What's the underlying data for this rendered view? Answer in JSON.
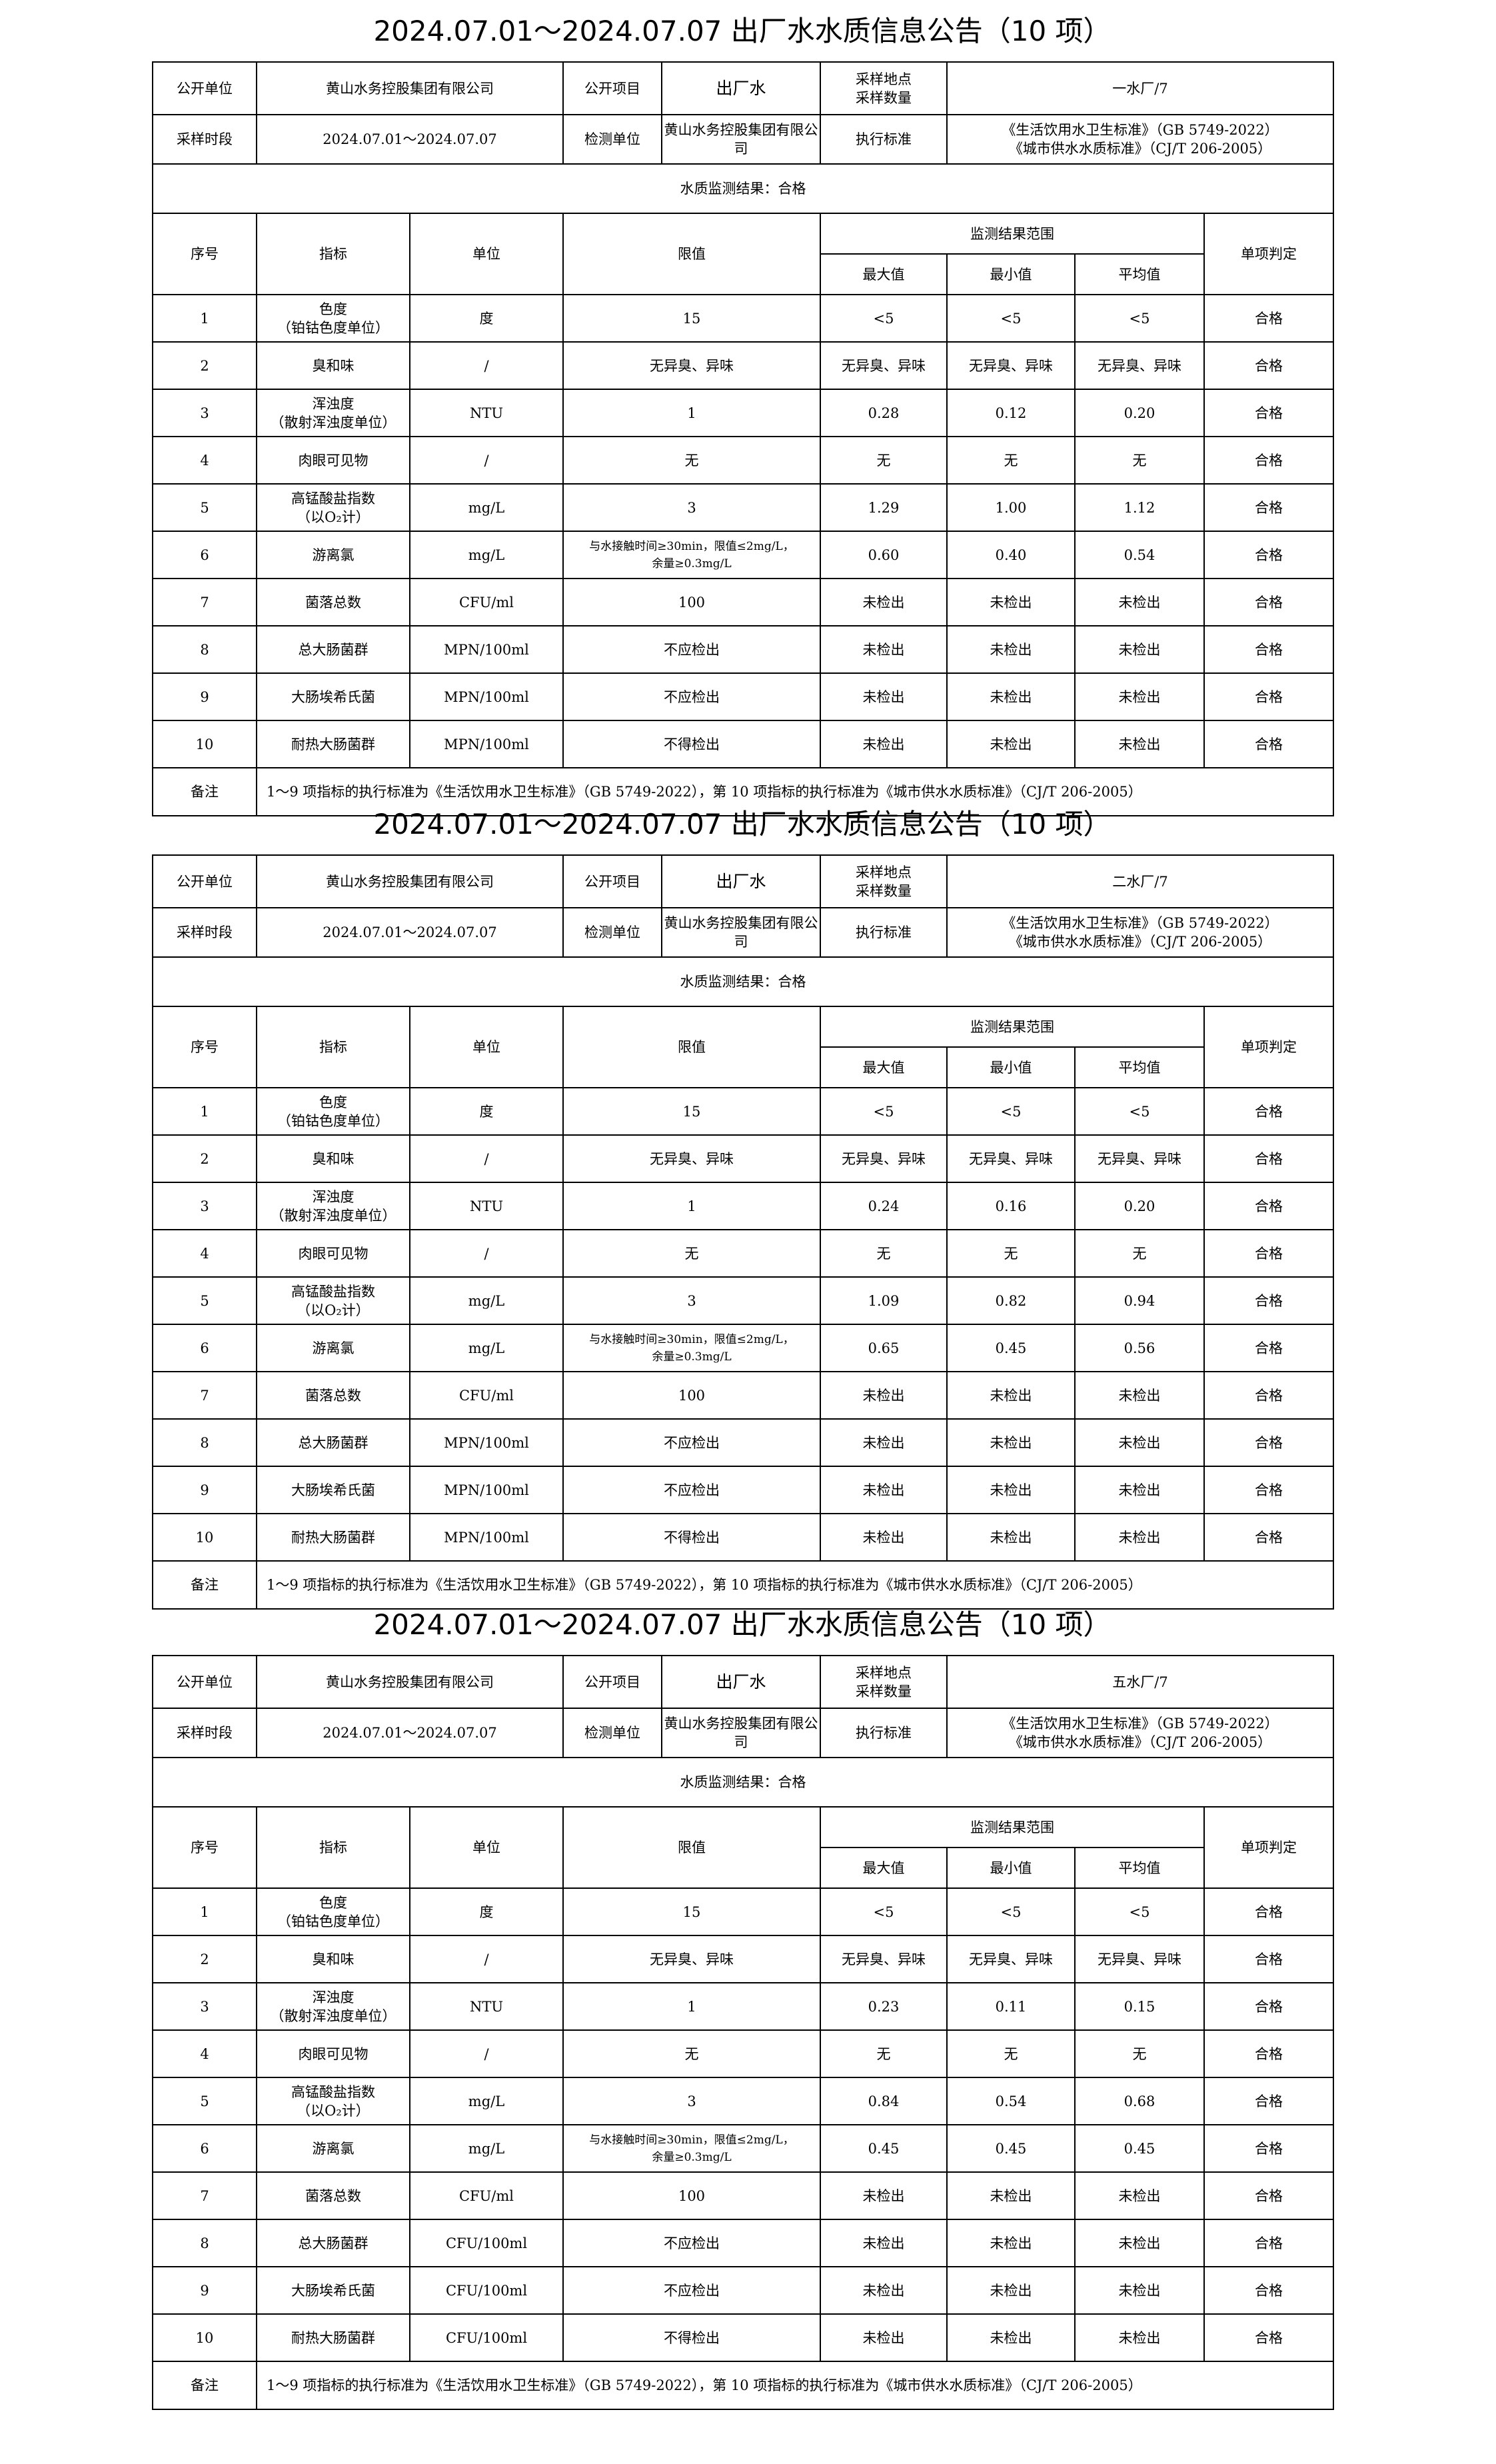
{
  "labels": {
    "publisher_label": "公开单位",
    "project_label": "公开项目",
    "sample_point_label": [
      "采样地点",
      "采样数量"
    ],
    "period_label": "采样时段",
    "lab_label": "检测单位",
    "standard_label": "执行标准",
    "col_no": "序号",
    "col_indicator": "指标",
    "col_unit": "单位",
    "col_limit": "限值",
    "col_range": "监测结果范围",
    "col_max": "最大值",
    "col_min": "最小值",
    "col_avg": "平均值",
    "col_verdict": "单项判定",
    "note_label": "备注"
  },
  "tables": [
    {
      "title": "2024.07.01～2024.07.07 出厂水水质信息公告（10 项）",
      "publisher": "黄山水务控股集团有限公司",
      "project": "出厂水",
      "sample_point": "一水厂/7",
      "period": "2024.07.01～2024.07.07",
      "lab": "黄山水务控股集团有限公司",
      "standards": [
        "《生活饮用水卫生标准》（GB 5749-2022）",
        "《城市供水水质标准》（CJ/T 206-2005）"
      ],
      "result": "水质监测结果：合格",
      "note": "1～9 项指标的执行标准为《生活饮用水卫生标准》（GB 5749-2022），第 10 项指标的执行标准为《城市供水水质标准》（CJ/T 206-2005）",
      "rows": [
        {
          "no": "1",
          "indicator": [
            "色度",
            "（铂钴色度单位）"
          ],
          "unit": "度",
          "limit": [
            "15"
          ],
          "max": "<5",
          "min": "<5",
          "avg": "<5",
          "verdict": "合格"
        },
        {
          "no": "2",
          "indicator": [
            "臭和味"
          ],
          "unit": "/",
          "limit": [
            "无异臭、异味"
          ],
          "max": "无异臭、异味",
          "min": "无异臭、异味",
          "avg": "无异臭、异味",
          "verdict": "合格"
        },
        {
          "no": "3",
          "indicator": [
            "浑浊度",
            "（散射浑浊度单位）"
          ],
          "unit": "NTU",
          "limit": [
            "1"
          ],
          "max": "0.28",
          "min": "0.12",
          "avg": "0.20",
          "verdict": "合格"
        },
        {
          "no": "4",
          "indicator": [
            "肉眼可见物"
          ],
          "unit": "/",
          "limit": [
            "无"
          ],
          "max": "无",
          "min": "无",
          "avg": "无",
          "verdict": "合格"
        },
        {
          "no": "5",
          "indicator": [
            "高锰酸盐指数",
            "（以O₂计）"
          ],
          "unit": "mg/L",
          "limit": [
            "3"
          ],
          "max": "1.29",
          "min": "1.00",
          "avg": "1.12",
          "verdict": "合格"
        },
        {
          "no": "6",
          "indicator": [
            "游离氯"
          ],
          "unit": "mg/L",
          "limit": [
            "与水接触时间≥30min，限值≤2mg/L，",
            "余量≥0.3mg/L"
          ],
          "max": "0.60",
          "min": "0.40",
          "avg": "0.54",
          "verdict": "合格"
        },
        {
          "no": "7",
          "indicator": [
            "菌落总数"
          ],
          "unit": "CFU/ml",
          "limit": [
            "100"
          ],
          "max": "未检出",
          "min": "未检出",
          "avg": "未检出",
          "verdict": "合格"
        },
        {
          "no": "8",
          "indicator": [
            "总大肠菌群"
          ],
          "unit": "MPN/100ml",
          "limit": [
            "不应检出"
          ],
          "max": "未检出",
          "min": "未检出",
          "avg": "未检出",
          "verdict": "合格"
        },
        {
          "no": "9",
          "indicator": [
            "大肠埃希氏菌"
          ],
          "unit": "MPN/100ml",
          "limit": [
            "不应检出"
          ],
          "max": "未检出",
          "min": "未检出",
          "avg": "未检出",
          "verdict": "合格"
        },
        {
          "no": "10",
          "indicator": [
            "耐热大肠菌群"
          ],
          "unit": "MPN/100ml",
          "limit": [
            "不得检出"
          ],
          "max": "未检出",
          "min": "未检出",
          "avg": "未检出",
          "verdict": "合格"
        }
      ]
    },
    {
      "title": "2024.07.01～2024.07.07 出厂水水质信息公告（10 项）",
      "publisher": "黄山水务控股集团有限公司",
      "project": "出厂水",
      "sample_point": "二水厂/7",
      "period": "2024.07.01～2024.07.07",
      "lab": "黄山水务控股集团有限公司",
      "standards": [
        "《生活饮用水卫生标准》（GB 5749-2022）",
        "《城市供水水质标准》（CJ/T 206-2005）"
      ],
      "result": "水质监测结果：合格",
      "note": "1～9 项指标的执行标准为《生活饮用水卫生标准》（GB 5749-2022），第 10 项指标的执行标准为《城市供水水质标准》（CJ/T 206-2005）",
      "rows": [
        {
          "no": "1",
          "indicator": [
            "色度",
            "（铂钴色度单位）"
          ],
          "unit": "度",
          "limit": [
            "15"
          ],
          "max": "<5",
          "min": "<5",
          "avg": "<5",
          "verdict": "合格"
        },
        {
          "no": "2",
          "indicator": [
            "臭和味"
          ],
          "unit": "/",
          "limit": [
            "无异臭、异味"
          ],
          "max": "无异臭、异味",
          "min": "无异臭、异味",
          "avg": "无异臭、异味",
          "verdict": "合格"
        },
        {
          "no": "3",
          "indicator": [
            "浑浊度",
            "（散射浑浊度单位）"
          ],
          "unit": "NTU",
          "limit": [
            "1"
          ],
          "max": "0.24",
          "min": "0.16",
          "avg": "0.20",
          "verdict": "合格"
        },
        {
          "no": "4",
          "indicator": [
            "肉眼可见物"
          ],
          "unit": "/",
          "limit": [
            "无"
          ],
          "max": "无",
          "min": "无",
          "avg": "无",
          "verdict": "合格"
        },
        {
          "no": "5",
          "indicator": [
            "高锰酸盐指数",
            "（以O₂计）"
          ],
          "unit": "mg/L",
          "limit": [
            "3"
          ],
          "max": "1.09",
          "min": "0.82",
          "avg": "0.94",
          "verdict": "合格"
        },
        {
          "no": "6",
          "indicator": [
            "游离氯"
          ],
          "unit": "mg/L",
          "limit": [
            "与水接触时间≥30min，限值≤2mg/L，",
            "余量≥0.3mg/L"
          ],
          "max": "0.65",
          "min": "0.45",
          "avg": "0.56",
          "verdict": "合格"
        },
        {
          "no": "7",
          "indicator": [
            "菌落总数"
          ],
          "unit": "CFU/ml",
          "limit": [
            "100"
          ],
          "max": "未检出",
          "min": "未检出",
          "avg": "未检出",
          "verdict": "合格"
        },
        {
          "no": "8",
          "indicator": [
            "总大肠菌群"
          ],
          "unit": "MPN/100ml",
          "limit": [
            "不应检出"
          ],
          "max": "未检出",
          "min": "未检出",
          "avg": "未检出",
          "verdict": "合格"
        },
        {
          "no": "9",
          "indicator": [
            "大肠埃希氏菌"
          ],
          "unit": "MPN/100ml",
          "limit": [
            "不应检出"
          ],
          "max": "未检出",
          "min": "未检出",
          "avg": "未检出",
          "verdict": "合格"
        },
        {
          "no": "10",
          "indicator": [
            "耐热大肠菌群"
          ],
          "unit": "MPN/100ml",
          "limit": [
            "不得检出"
          ],
          "max": "未检出",
          "min": "未检出",
          "avg": "未检出",
          "verdict": "合格"
        }
      ]
    },
    {
      "title": "2024.07.01～2024.07.07 出厂水水质信息公告（10 项）",
      "publisher": "黄山水务控股集团有限公司",
      "project": "出厂水",
      "sample_point": "五水厂/7",
      "period": "2024.07.01～2024.07.07",
      "lab": "黄山水务控股集团有限公司",
      "standards": [
        "《生活饮用水卫生标准》（GB 5749-2022）",
        "《城市供水水质标准》（CJ/T 206-2005）"
      ],
      "result": "水质监测结果：合格",
      "note": "1～9 项指标的执行标准为《生活饮用水卫生标准》（GB 5749-2022），第 10 项指标的执行标准为《城市供水水质标准》（CJ/T 206-2005）",
      "rows": [
        {
          "no": "1",
          "indicator": [
            "色度",
            "（铂钴色度单位）"
          ],
          "unit": "度",
          "limit": [
            "15"
          ],
          "max": "<5",
          "min": "<5",
          "avg": "<5",
          "verdict": "合格"
        },
        {
          "no": "2",
          "indicator": [
            "臭和味"
          ],
          "unit": "/",
          "limit": [
            "无异臭、异味"
          ],
          "max": "无异臭、异味",
          "min": "无异臭、异味",
          "avg": "无异臭、异味",
          "verdict": "合格"
        },
        {
          "no": "3",
          "indicator": [
            "浑浊度",
            "（散射浑浊度单位）"
          ],
          "unit": "NTU",
          "limit": [
            "1"
          ],
          "max": "0.23",
          "min": "0.11",
          "avg": "0.15",
          "verdict": "合格"
        },
        {
          "no": "4",
          "indicator": [
            "肉眼可见物"
          ],
          "unit": "/",
          "limit": [
            "无"
          ],
          "max": "无",
          "min": "无",
          "avg": "无",
          "verdict": "合格"
        },
        {
          "no": "5",
          "indicator": [
            "高锰酸盐指数",
            "（以O₂计）"
          ],
          "unit": "mg/L",
          "limit": [
            "3"
          ],
          "max": "0.84",
          "min": "0.54",
          "avg": "0.68",
          "verdict": "合格"
        },
        {
          "no": "6",
          "indicator": [
            "游离氯"
          ],
          "unit": "mg/L",
          "limit": [
            "与水接触时间≥30min，限值≤2mg/L，",
            "余量≥0.3mg/L"
          ],
          "max": "0.45",
          "min": "0.45",
          "avg": "0.45",
          "verdict": "合格"
        },
        {
          "no": "7",
          "indicator": [
            "菌落总数"
          ],
          "unit": "CFU/ml",
          "limit": [
            "100"
          ],
          "max": "未检出",
          "min": "未检出",
          "avg": "未检出",
          "verdict": "合格"
        },
        {
          "no": "8",
          "indicator": [
            "总大肠菌群"
          ],
          "unit": "CFU/100ml",
          "limit": [
            "不应检出"
          ],
          "max": "未检出",
          "min": "未检出",
          "avg": "未检出",
          "verdict": "合格"
        },
        {
          "no": "9",
          "indicator": [
            "大肠埃希氏菌"
          ],
          "unit": "CFU/100ml",
          "limit": [
            "不应检出"
          ],
          "max": "未检出",
          "min": "未检出",
          "avg": "未检出",
          "verdict": "合格"
        },
        {
          "no": "10",
          "indicator": [
            "耐热大肠菌群"
          ],
          "unit": "CFU/100ml",
          "limit": [
            "不得检出"
          ],
          "max": "未检出",
          "min": "未检出",
          "avg": "未检出",
          "verdict": "合格"
        }
      ]
    }
  ]
}
